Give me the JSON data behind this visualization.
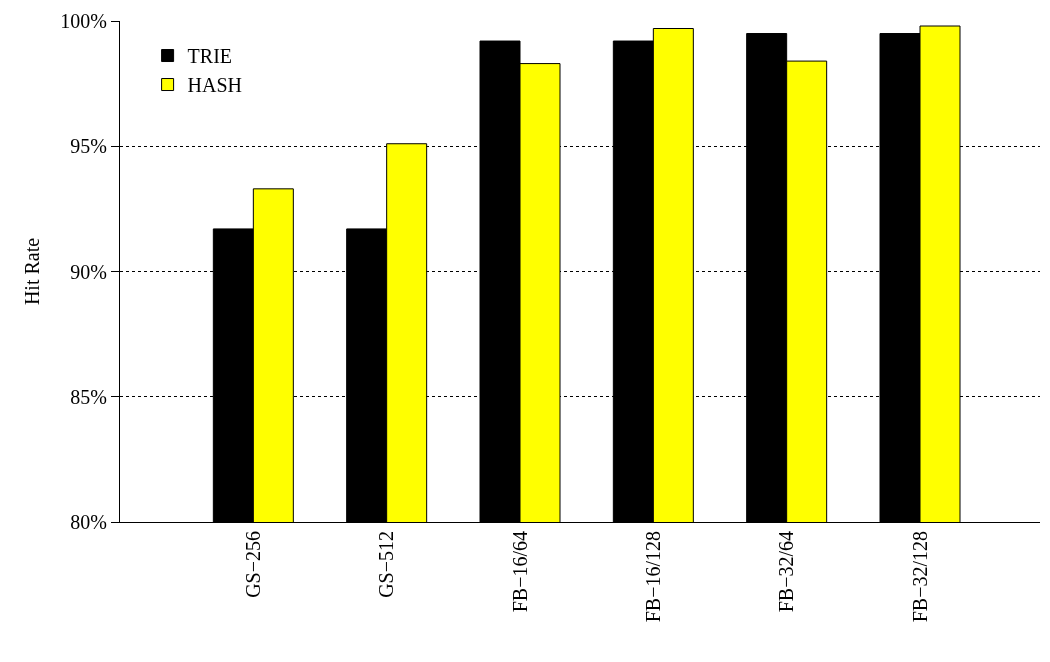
{
  "chart_data": {
    "type": "bar",
    "ylabel": "Hit Rate",
    "categories": [
      "GS−256",
      "GS−512",
      "FB−16/64",
      "FB−16/128",
      "FB−32/64",
      "FB−32/128"
    ],
    "series": [
      {
        "name": "TRIE",
        "color": "#000000",
        "values": [
          91.7,
          91.7,
          99.2,
          99.2,
          99.5,
          99.5
        ]
      },
      {
        "name": "HASH",
        "color": "#ffff00",
        "values": [
          93.3,
          95.1,
          98.3,
          99.7,
          98.4,
          99.8
        ]
      }
    ],
    "ylim": [
      80,
      100
    ],
    "yticks": [
      {
        "value": 80,
        "label": "80%"
      },
      {
        "value": 85,
        "label": "85%"
      },
      {
        "value": 90,
        "label": "90%"
      },
      {
        "value": 95,
        "label": "95%"
      },
      {
        "value": 100,
        "label": "100%"
      }
    ],
    "grid": "y",
    "legend": "top left"
  }
}
